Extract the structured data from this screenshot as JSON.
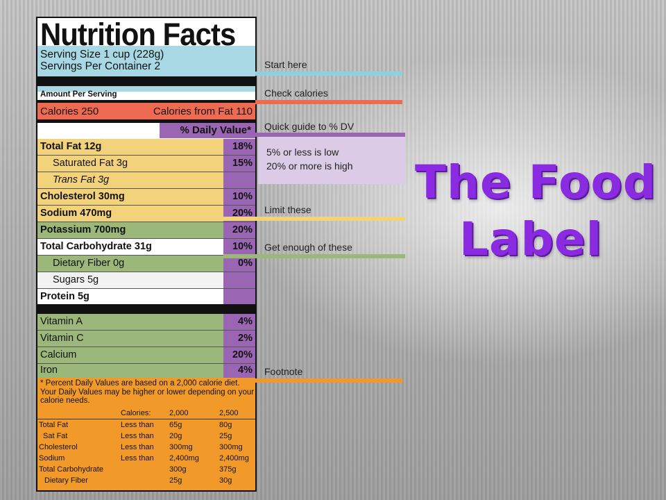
{
  "label": {
    "title": "Nutrition Facts",
    "serving_size": "Serving Size 1 cup (228g)",
    "servings_per_container": "Servings Per Container  2",
    "amount_per_serving": "Amount Per Serving",
    "calories": "Calories 250",
    "calories_from_fat": "Calories from Fat 110",
    "daily_value_header": "% Daily Value*",
    "nutrients": [
      {
        "name": "Total Fat 12g",
        "pct": "18%"
      },
      {
        "name": "Saturated Fat 3g",
        "pct": "15%"
      },
      {
        "name": "Trans Fat 3g",
        "pct": ""
      },
      {
        "name": "Cholesterol 30mg",
        "pct": "10%"
      },
      {
        "name": "Sodium 470mg",
        "pct": "20%"
      },
      {
        "name": "Potassium 700mg",
        "pct": "20%"
      },
      {
        "name": "Total Carbohydrate 31g",
        "pct": "10%"
      },
      {
        "name": "Dietary Fiber 0g",
        "pct": "0%"
      },
      {
        "name": "Sugars 5g",
        "pct": ""
      },
      {
        "name": "Protein 5g",
        "pct": ""
      }
    ],
    "vitamins": [
      {
        "name": "Vitamin A",
        "pct": "4%"
      },
      {
        "name": "Vitamin C",
        "pct": "2%"
      },
      {
        "name": "Calcium",
        "pct": "20%"
      },
      {
        "name": "Iron",
        "pct": "4%"
      }
    ],
    "footnote": "* Percent Daily Values are based on a 2,000 calorie diet. Your Daily Values may be higher or lower depending on your calorie needs.",
    "footnote_table": {
      "header": [
        "",
        "Calories:",
        "2,000",
        "2,500"
      ],
      "rows": [
        [
          "Total Fat",
          "Less than",
          "65g",
          "80g"
        ],
        [
          "Sat Fat",
          "Less than",
          "20g",
          "25g"
        ],
        [
          "Cholesterol",
          "Less than",
          "300mg",
          "300mg"
        ],
        [
          "Sodium",
          "Less than",
          "2,400mg",
          "2,400mg"
        ],
        [
          "Total Carbohydrate",
          "",
          "300g",
          "375g"
        ],
        [
          "Dietary Fiber",
          "",
          "25g",
          "30g"
        ]
      ]
    }
  },
  "callouts": {
    "start_here": "Start here",
    "check_calories": "Check calories",
    "quick_guide": "Quick guide to % DV",
    "guide_low": "5% or less is low",
    "guide_high": "20% or more is high",
    "limit_these": "Limit these",
    "get_enough": "Get enough of these",
    "footnote": "Footnote"
  },
  "slide_title": {
    "line1": "The Food",
    "line2": "Label"
  },
  "colors": {
    "serving_blue": "#a7d8e4",
    "calories_red": "#ee6a50",
    "dv_purple": "#9a65b2",
    "limit_yellow": "#f2d27a",
    "enough_green": "#9bb77a",
    "footnote_orange": "#f19a2a",
    "title_purple": "#8a2be2"
  }
}
